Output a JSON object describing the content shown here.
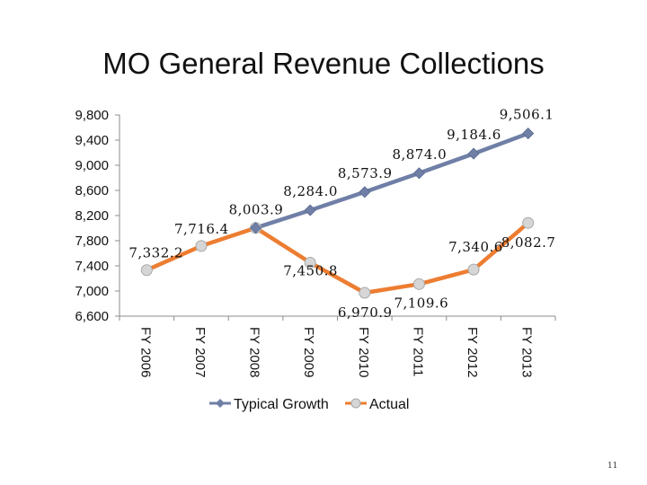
{
  "slide": {
    "title": "MO General Revenue Collections",
    "page_number": "11"
  },
  "chart_data": {
    "type": "line",
    "title": "MO General Revenue Collections",
    "categories": [
      "FY 2006",
      "FY 2007",
      "FY 2008",
      "FY 2009",
      "FY 2010",
      "FY 2011",
      "FY 2012",
      "FY 2013"
    ],
    "ylim": [
      6600,
      9800
    ],
    "yticks": [
      6600,
      7000,
      7400,
      7800,
      8200,
      8600,
      9000,
      9400,
      9800
    ],
    "ytick_labels": [
      "6,600",
      "7,000",
      "7,400",
      "7,800",
      "8,200",
      "8,600",
      "9,000",
      "9,400",
      "9,800"
    ],
    "series": [
      {
        "name": "Typical Growth",
        "color": "#6f7fa6",
        "marker": "diamond",
        "values": [
          null,
          null,
          8003.9,
          8284.0,
          8573.9,
          8874.0,
          9184.6,
          9506.1
        ],
        "labels": [
          null,
          null,
          "8,003.9",
          "8,284.0",
          "8,573.9",
          "8,874.0",
          "9,184.6",
          "9,506.1"
        ]
      },
      {
        "name": "Actual",
        "color": "#ed7d31",
        "marker": "circle",
        "values": [
          7332.2,
          7716.4,
          8003.9,
          7450.8,
          6970.9,
          7109.6,
          7340.6,
          8082.7
        ],
        "labels": [
          "7,332.2",
          "7,716.4",
          null,
          "7,450.8",
          "6,970.9",
          "7,109.6",
          "7,340.6",
          "8,082.7"
        ]
      }
    ],
    "legend": "bottom",
    "grid": false
  }
}
